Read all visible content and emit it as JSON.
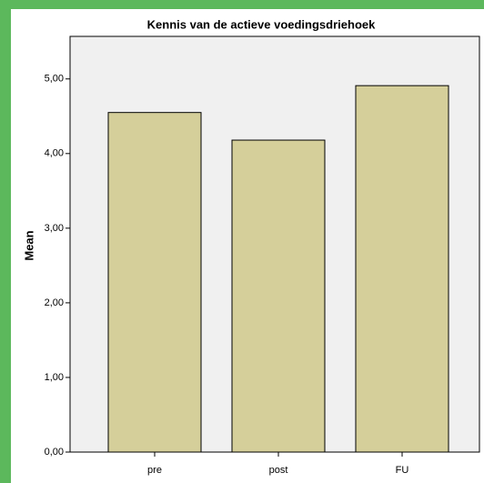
{
  "chart_data": {
    "type": "bar",
    "title": "Kennis van de actieve voedingsdriehoek",
    "y_label": "Mean",
    "categories": [
      "pre",
      "post",
      "FU"
    ],
    "values": [
      4.55,
      4.18,
      4.91
    ],
    "color": "#d5cf9a",
    "ylim": [
      0,
      5.57
    ],
    "yticks": [
      {
        "value": 0,
        "label": "0,00"
      },
      {
        "value": 1,
        "label": "1,00"
      },
      {
        "value": 2,
        "label": "2,00"
      },
      {
        "value": 3,
        "label": "3,00"
      },
      {
        "value": 4,
        "label": "4,00"
      },
      {
        "value": 5,
        "label": "5,00"
      }
    ]
  }
}
